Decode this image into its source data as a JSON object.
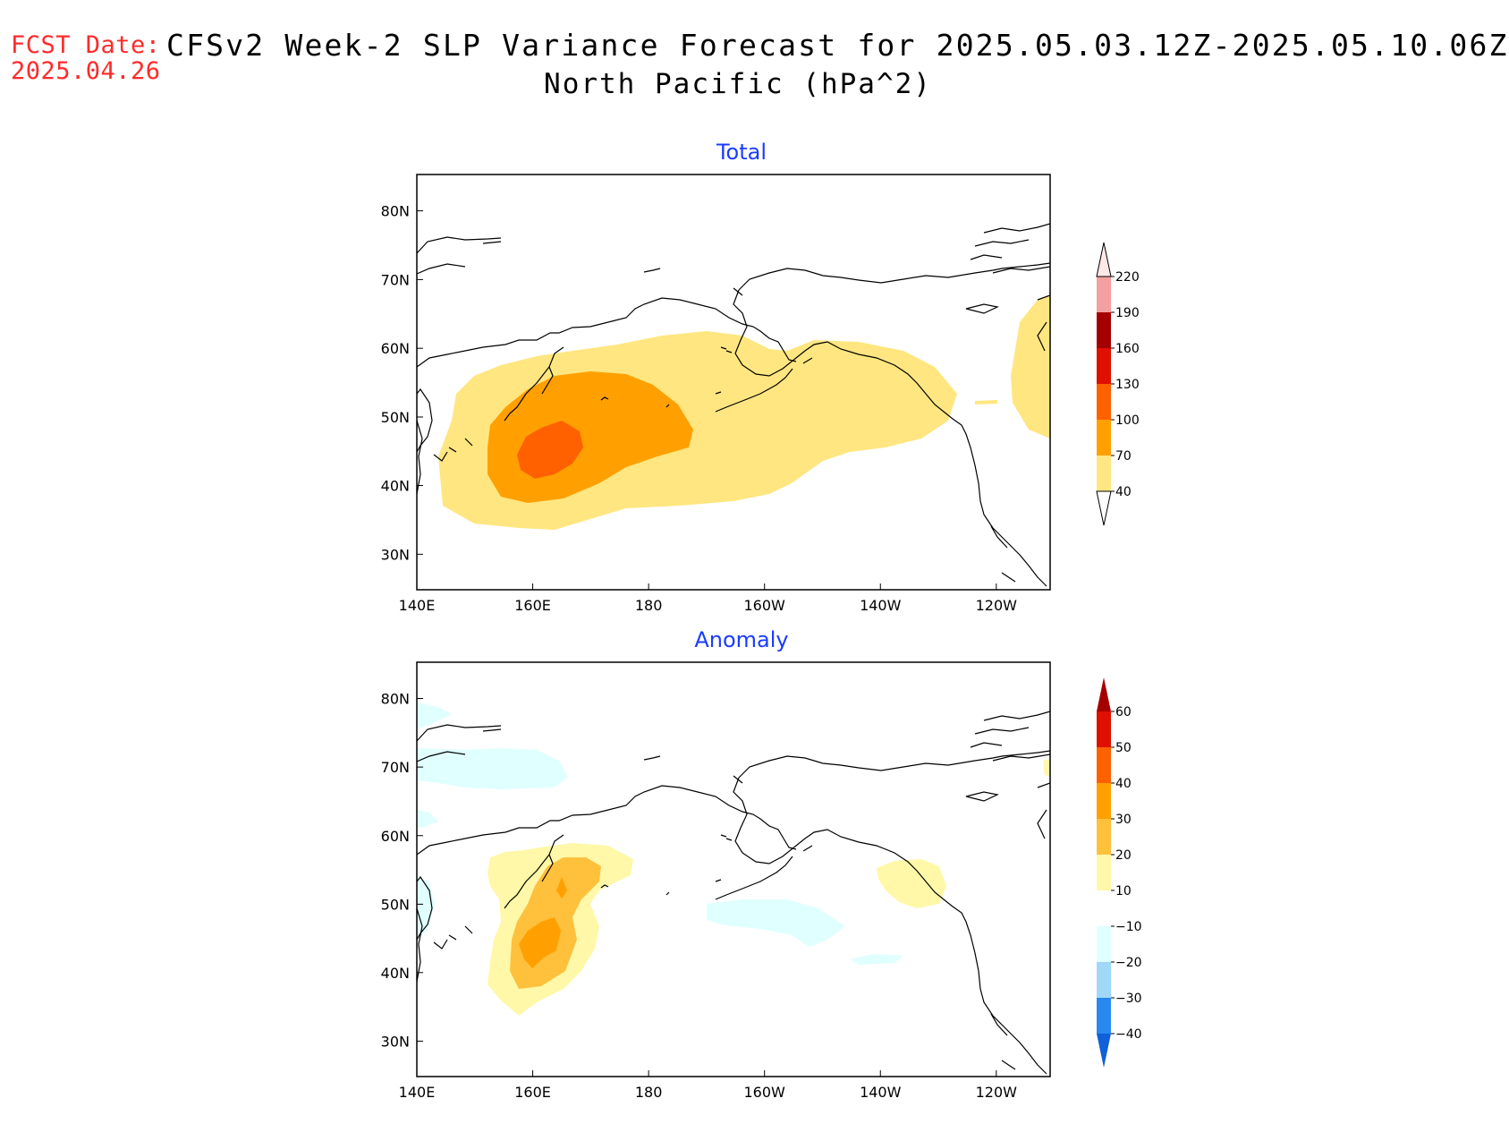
{
  "header": {
    "fcst_label": "FCST Date:",
    "fcst_date": "2025.04.26",
    "title": "CFSv2 Week-2 SLP Variance Forecast for 2025.05.03.12Z-2025.05.10.06Z",
    "subtitle": "North Pacific (hPa^2)"
  },
  "axes": {
    "lat_labels": [
      "80N",
      "70N",
      "60N",
      "50N",
      "40N",
      "30N"
    ],
    "lon_labels": [
      "140E",
      "160E",
      "180",
      "160W",
      "140W",
      "120W"
    ]
  },
  "panels": [
    {
      "title": "Total",
      "colorbar": {
        "labels": [
          "220",
          "190",
          "160",
          "130",
          "100",
          "70",
          "40"
        ],
        "colors": [
          "#f4a0a0",
          "#a50000",
          "#e01000",
          "#ff6000",
          "#ffa000",
          "#ffe680"
        ]
      },
      "fill_colors": {
        "level1": "#ffe680",
        "level2": "#ffa000",
        "level3": "#ff6000"
      }
    },
    {
      "title": "Anomaly",
      "colorbar": {
        "labels": [
          "60",
          "50",
          "40",
          "30",
          "20",
          "10",
          "−10",
          "−20",
          "−30",
          "−40"
        ],
        "colors": [
          "#e01000",
          "#ff6000",
          "#ffa000",
          "#ffc03c",
          "#fff8a8",
          "#ffffff",
          "#e0ffff",
          "#a0d8f8",
          "#2888f0"
        ],
        "top_arrow": "#a50000",
        "bottom_arrow": "#1060d8"
      },
      "fill_colors": {
        "pos1": "#fff8a8",
        "pos2": "#ffc03c",
        "pos3": "#ffa000",
        "neg1": "#e0ffff"
      }
    }
  ]
}
